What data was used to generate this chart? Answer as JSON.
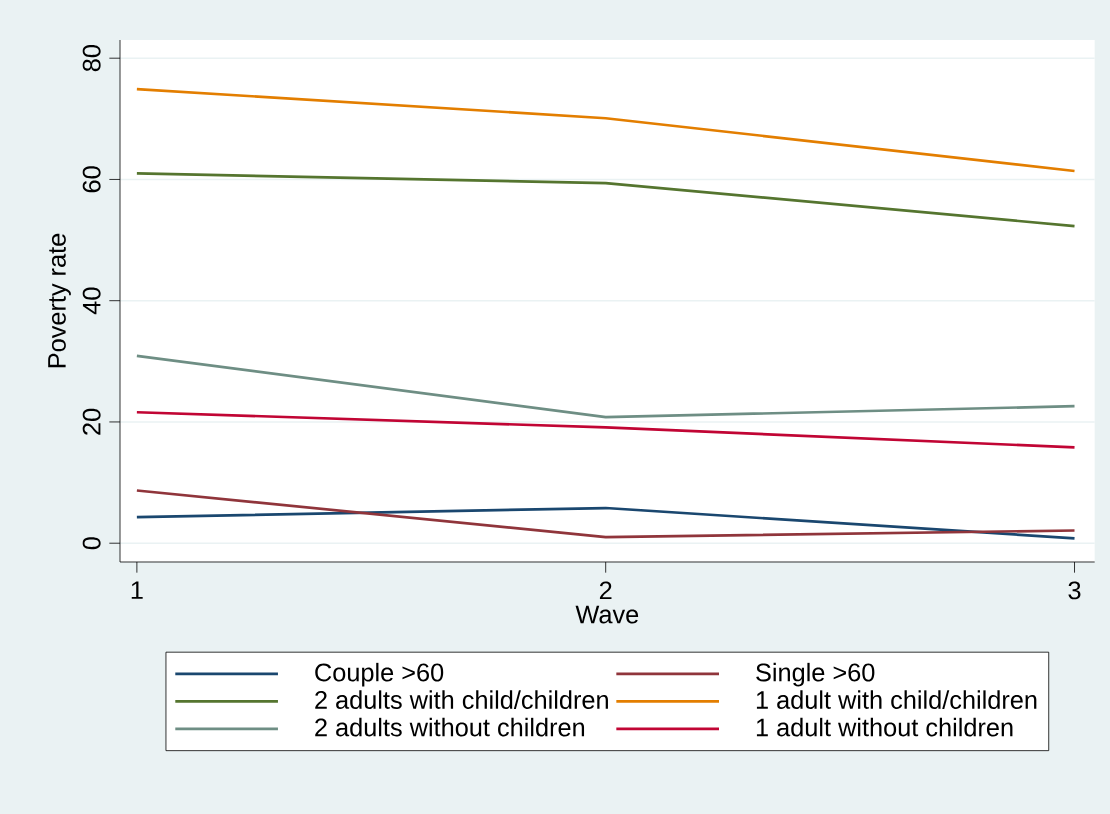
{
  "chart_data": {
    "type": "line",
    "xlabel": "Wave",
    "ylabel": "Poverty rate",
    "x": [
      1,
      2,
      3
    ],
    "xlim": [
      0.964,
      3.043
    ],
    "ylim": [
      -3.1,
      83
    ],
    "xticks": [
      1,
      2,
      3
    ],
    "yticks": [
      0,
      20,
      40,
      60,
      80
    ],
    "grid": "y",
    "legend": "bottom",
    "marker": "none",
    "line_style": "solid",
    "series": [
      {
        "name": "Couple >60",
        "color": "#1a476f",
        "values": [
          4.3,
          5.8,
          0.8
        ]
      },
      {
        "name": "Single >60",
        "color": "#90353b",
        "values": [
          8.7,
          1.0,
          2.1
        ]
      },
      {
        "name": "2 adults with child/children",
        "color": "#55752f",
        "values": [
          61.0,
          59.4,
          52.3
        ]
      },
      {
        "name": "1 adult with child/children",
        "color": "#e37e00",
        "values": [
          74.9,
          70.1,
          61.4
        ]
      },
      {
        "name": "2 adults without children",
        "color": "#6e8e84",
        "values": [
          30.9,
          20.8,
          22.6
        ]
      },
      {
        "name": "1 adult without children",
        "color": "#c10534",
        "values": [
          21.6,
          19.1,
          15.8
        ]
      }
    ]
  }
}
